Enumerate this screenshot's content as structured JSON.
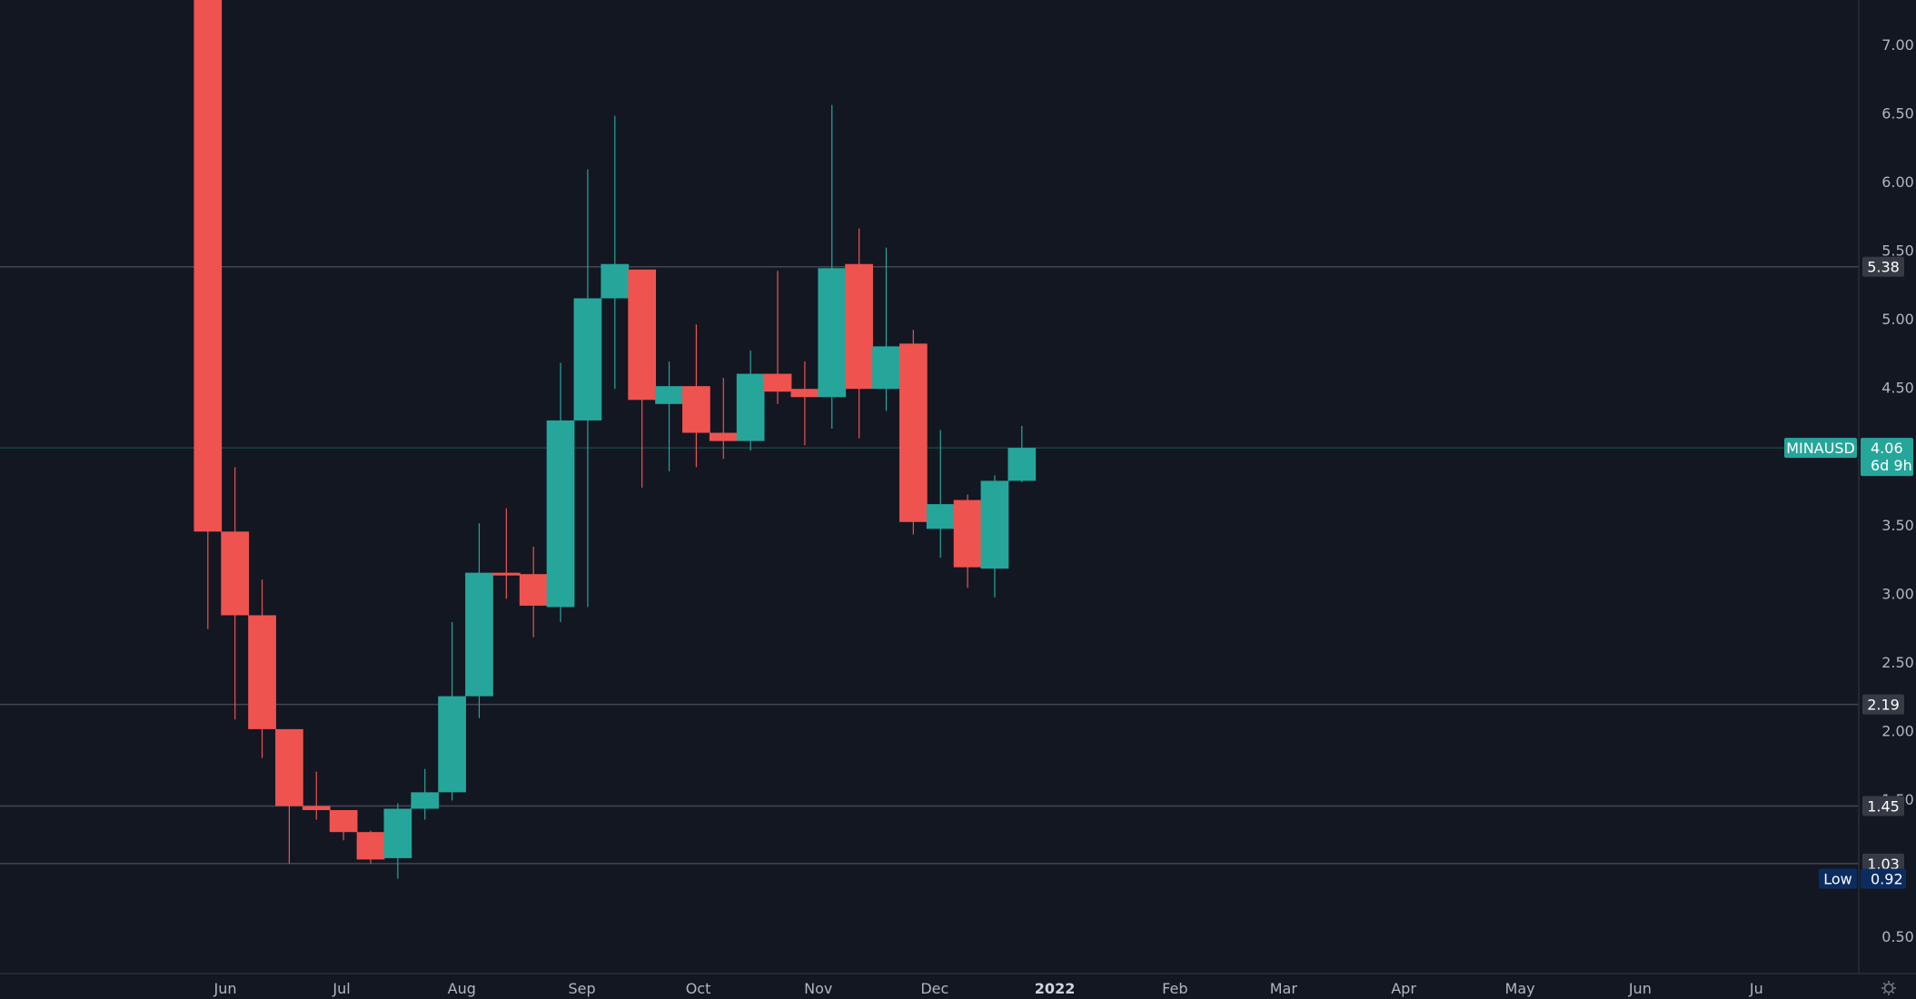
{
  "chart_data": {
    "type": "candlestick",
    "symbol": "MINAUSD",
    "interval": "1W",
    "colors": {
      "background": "#131722",
      "up": "#26a69a",
      "down": "#ef5350",
      "level_line": "#434651",
      "level_box": "#363a45",
      "low_box": "#0b2c5e",
      "axis_text": "#b2b5be"
    },
    "y_axis": {
      "min": 0.3,
      "max": 7.3,
      "ticks": [
        "7.00",
        "6.50",
        "6.00",
        "5.50",
        "5.00",
        "4.50",
        "3.50",
        "3.00",
        "2.50",
        "2.00",
        "1.50",
        "0.50"
      ]
    },
    "x_axis": {
      "ticks": [
        {
          "label": "Jun",
          "date": "2021-06-01"
        },
        {
          "label": "Jul",
          "date": "2021-07-01"
        },
        {
          "label": "Aug",
          "date": "2021-08-01"
        },
        {
          "label": "Sep",
          "date": "2021-09-01"
        },
        {
          "label": "Oct",
          "date": "2021-10-01"
        },
        {
          "label": "Nov",
          "date": "2021-11-01"
        },
        {
          "label": "Dec",
          "date": "2021-12-01"
        },
        {
          "label": "2022",
          "date": "2022-01-01",
          "bold": true
        },
        {
          "label": "Feb",
          "date": "2022-02-01"
        },
        {
          "label": "Mar",
          "date": "2022-03-01"
        },
        {
          "label": "Apr",
          "date": "2022-04-01"
        },
        {
          "label": "May",
          "date": "2022-05-01"
        },
        {
          "label": "Jun",
          "date": "2022-06-01"
        },
        {
          "label": "Ju",
          "date": "2022-07-01"
        }
      ]
    },
    "candles": [
      {
        "date": "2021-05-24",
        "open": 8.5,
        "high": 9.0,
        "low": 2.74,
        "close": 3.45
      },
      {
        "date": "2021-05-31",
        "open": 3.45,
        "high": 3.92,
        "low": 2.08,
        "close": 2.84
      },
      {
        "date": "2021-06-07",
        "open": 2.84,
        "high": 3.1,
        "low": 1.8,
        "close": 2.01
      },
      {
        "date": "2021-06-14",
        "open": 2.01,
        "high": 2.01,
        "low": 1.03,
        "close": 1.45
      },
      {
        "date": "2021-06-21",
        "open": 1.45,
        "high": 1.7,
        "low": 1.35,
        "close": 1.42
      },
      {
        "date": "2021-06-28",
        "open": 1.42,
        "high": 1.42,
        "low": 1.2,
        "close": 1.26
      },
      {
        "date": "2021-07-05",
        "open": 1.26,
        "high": 1.27,
        "low": 1.03,
        "close": 1.06
      },
      {
        "date": "2021-07-12",
        "open": 1.07,
        "high": 1.47,
        "low": 0.92,
        "close": 1.43
      },
      {
        "date": "2021-07-19",
        "open": 1.43,
        "high": 1.72,
        "low": 1.35,
        "close": 1.55
      },
      {
        "date": "2021-07-26",
        "open": 1.55,
        "high": 2.79,
        "low": 1.49,
        "close": 2.25
      },
      {
        "date": "2021-08-02",
        "open": 2.25,
        "high": 3.51,
        "low": 2.09,
        "close": 3.15
      },
      {
        "date": "2021-08-09",
        "open": 3.15,
        "high": 3.62,
        "low": 2.96,
        "close": 3.13
      },
      {
        "date": "2021-08-16",
        "open": 3.14,
        "high": 3.34,
        "low": 2.68,
        "close": 2.91
      },
      {
        "date": "2021-08-23",
        "open": 2.9,
        "high": 4.68,
        "low": 2.79,
        "close": 4.26
      },
      {
        "date": "2021-08-30",
        "open": 4.26,
        "high": 6.09,
        "low": 2.9,
        "close": 5.15
      },
      {
        "date": "2021-09-06",
        "open": 5.15,
        "high": 6.48,
        "low": 4.49,
        "close": 5.4
      },
      {
        "date": "2021-09-13",
        "open": 5.36,
        "high": 5.36,
        "low": 3.77,
        "close": 4.41
      },
      {
        "date": "2021-09-20",
        "open": 4.38,
        "high": 4.69,
        "low": 3.89,
        "close": 4.51
      },
      {
        "date": "2021-09-27",
        "open": 4.51,
        "high": 4.96,
        "low": 3.92,
        "close": 4.17
      },
      {
        "date": "2021-10-04",
        "open": 4.17,
        "high": 4.57,
        "low": 3.98,
        "close": 4.11
      },
      {
        "date": "2021-10-11",
        "open": 4.11,
        "high": 4.77,
        "low": 4.04,
        "close": 4.6
      },
      {
        "date": "2021-10-18",
        "open": 4.6,
        "high": 5.35,
        "low": 4.38,
        "close": 4.47
      },
      {
        "date": "2021-10-25",
        "open": 4.49,
        "high": 4.69,
        "low": 4.08,
        "close": 4.43
      },
      {
        "date": "2021-11-01",
        "open": 4.43,
        "high": 6.56,
        "low": 4.2,
        "close": 5.37
      },
      {
        "date": "2021-11-08",
        "open": 5.4,
        "high": 5.66,
        "low": 4.13,
        "close": 4.49
      },
      {
        "date": "2021-11-15",
        "open": 4.49,
        "high": 5.52,
        "low": 4.33,
        "close": 4.8
      },
      {
        "date": "2021-11-22",
        "open": 4.82,
        "high": 4.92,
        "low": 3.43,
        "close": 3.52
      },
      {
        "date": "2021-11-29",
        "open": 3.47,
        "high": 4.19,
        "low": 3.26,
        "close": 3.65
      },
      {
        "date": "2021-12-06",
        "open": 3.68,
        "high": 3.72,
        "low": 3.04,
        "close": 3.19
      },
      {
        "date": "2021-12-13",
        "open": 3.18,
        "high": 3.86,
        "low": 2.97,
        "close": 3.82
      },
      {
        "date": "2021-12-20",
        "open": 3.82,
        "high": 4.22,
        "low": 3.81,
        "close": 4.06
      }
    ],
    "levels": [
      {
        "value": 5.38,
        "label": "5.38"
      },
      {
        "value": 2.19,
        "label": "2.19"
      },
      {
        "value": 1.45,
        "label": "1.45"
      },
      {
        "value": 1.03,
        "label": "1.03"
      }
    ],
    "current": {
      "symbol_label": "MINAUSD",
      "price": 4.06,
      "price_label": "4.06",
      "countdown": "6d 9h"
    },
    "low_marker": {
      "name": "Low",
      "value": 0.92,
      "label": "0.92"
    }
  },
  "footer": {
    "settings_icon": "gear-icon"
  }
}
